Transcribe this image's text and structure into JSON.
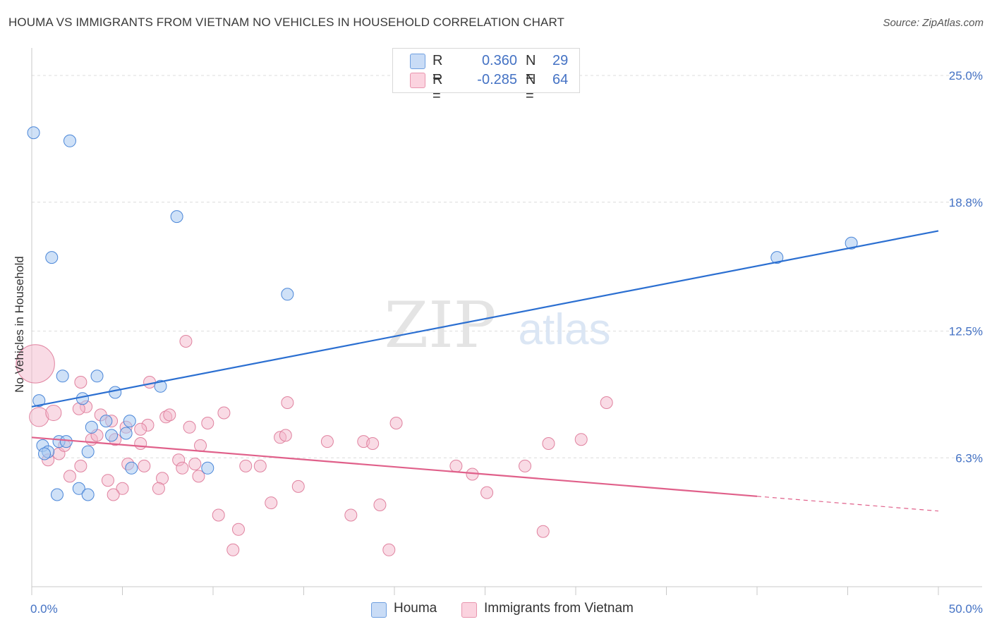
{
  "title": "HOUMA VS IMMIGRANTS FROM VIETNAM NO VEHICLES IN HOUSEHOLD CORRELATION CHART",
  "source": "Source: ZipAtlas.com",
  "watermark": {
    "zip": "ZIP",
    "atlas": "atlas"
  },
  "legend_top": {
    "rows": [
      {
        "r_label": "R =",
        "r_value": "0.360",
        "n_label": "N =",
        "n_value": "29",
        "color": "#a8c8f0"
      },
      {
        "r_label": "R =",
        "r_value": "-0.285",
        "n_label": "N =",
        "n_value": "64",
        "color": "#f4b8cb"
      }
    ]
  },
  "legend_bottom": [
    {
      "label": "Houma",
      "color": "#a8c8f0"
    },
    {
      "label": "Immigrants from Vietnam",
      "color": "#f4b8cb"
    }
  ],
  "chart_data": {
    "type": "scatter",
    "xlabel": "",
    "ylabel": "No Vehicles in Household",
    "xlim": [
      0,
      50
    ],
    "ylim": [
      0,
      26
    ],
    "x_tick_labels": [
      "0.0%",
      "50.0%"
    ],
    "y_tick_values": [
      6.3,
      12.5,
      18.8,
      25.0
    ],
    "y_tick_labels": [
      "6.3%",
      "12.5%",
      "18.8%",
      "25.0%"
    ],
    "grid": true,
    "legend_position": "top-center",
    "colors": {
      "houma_fill": "#a8c8f0",
      "houma_stroke": "#4a86d8",
      "houma_line": "#2b6fd1",
      "vietnam_fill": "#f4b8cb",
      "vietnam_stroke": "#e0829f",
      "vietnam_line": "#e0608a"
    },
    "series": [
      {
        "name": "Houma",
        "trend": {
          "x": [
            0,
            50
          ],
          "y": [
            8.8,
            17.4
          ],
          "solid_until": 50
        },
        "points": [
          [
            0.1,
            22.2
          ],
          [
            2.1,
            21.8
          ],
          [
            8.0,
            18.1
          ],
          [
            1.1,
            16.1
          ],
          [
            14.1,
            14.3
          ],
          [
            41.1,
            16.1
          ],
          [
            45.2,
            16.8
          ],
          [
            3.6,
            10.3
          ],
          [
            1.7,
            10.3
          ],
          [
            7.1,
            9.8
          ],
          [
            4.6,
            9.5
          ],
          [
            0.4,
            9.1
          ],
          [
            2.8,
            9.2
          ],
          [
            4.1,
            8.1
          ],
          [
            3.3,
            7.8
          ],
          [
            4.4,
            7.4
          ],
          [
            5.2,
            7.5
          ],
          [
            5.4,
            8.1
          ],
          [
            1.5,
            7.1
          ],
          [
            1.9,
            7.1
          ],
          [
            0.6,
            6.9
          ],
          [
            0.9,
            6.6
          ],
          [
            0.7,
            6.5
          ],
          [
            3.1,
            6.6
          ],
          [
            5.5,
            5.8
          ],
          [
            9.7,
            5.8
          ],
          [
            1.4,
            4.5
          ],
          [
            2.6,
            4.8
          ],
          [
            3.1,
            4.5
          ]
        ]
      },
      {
        "name": "Immigrants from Vietnam",
        "trend": {
          "x": [
            0,
            50
          ],
          "y": [
            7.3,
            3.7
          ],
          "solid_until": 40
        },
        "points": [
          [
            0.2,
            10.9
          ],
          [
            0.4,
            8.3
          ],
          [
            1.2,
            8.5
          ],
          [
            3.0,
            8.8
          ],
          [
            2.6,
            8.7
          ],
          [
            3.8,
            8.4
          ],
          [
            4.4,
            8.1
          ],
          [
            6.5,
            10.0
          ],
          [
            8.5,
            12.0
          ],
          [
            7.4,
            8.3
          ],
          [
            7.6,
            8.4
          ],
          [
            6.4,
            7.9
          ],
          [
            6.0,
            7.7
          ],
          [
            8.7,
            7.8
          ],
          [
            9.7,
            8.0
          ],
          [
            10.6,
            8.5
          ],
          [
            14.1,
            9.0
          ],
          [
            20.1,
            8.0
          ],
          [
            31.7,
            9.0
          ],
          [
            2.7,
            10.0
          ],
          [
            3.3,
            7.2
          ],
          [
            3.6,
            7.4
          ],
          [
            4.6,
            7.2
          ],
          [
            5.2,
            7.8
          ],
          [
            6.0,
            7.0
          ],
          [
            9.3,
            6.9
          ],
          [
            13.7,
            7.3
          ],
          [
            14.0,
            7.4
          ],
          [
            16.3,
            7.1
          ],
          [
            18.3,
            7.1
          ],
          [
            18.8,
            7.0
          ],
          [
            28.5,
            7.0
          ],
          [
            30.3,
            7.2
          ],
          [
            1.5,
            6.5
          ],
          [
            0.9,
            6.2
          ],
          [
            1.8,
            6.9
          ],
          [
            2.7,
            5.9
          ],
          [
            5.3,
            6.0
          ],
          [
            6.2,
            5.9
          ],
          [
            8.1,
            6.2
          ],
          [
            8.3,
            5.8
          ],
          [
            9.0,
            6.0
          ],
          [
            11.8,
            5.9
          ],
          [
            12.6,
            5.9
          ],
          [
            23.4,
            5.9
          ],
          [
            27.2,
            5.9
          ],
          [
            24.3,
            5.5
          ],
          [
            2.1,
            5.4
          ],
          [
            4.2,
            5.2
          ],
          [
            7.2,
            5.3
          ],
          [
            9.2,
            5.4
          ],
          [
            5.0,
            4.8
          ],
          [
            7.0,
            4.8
          ],
          [
            14.7,
            4.9
          ],
          [
            4.5,
            4.5
          ],
          [
            25.1,
            4.6
          ],
          [
            13.2,
            4.1
          ],
          [
            19.2,
            4.0
          ],
          [
            10.3,
            3.5
          ],
          [
            17.6,
            3.5
          ],
          [
            11.4,
            2.8
          ],
          [
            28.2,
            2.7
          ],
          [
            11.1,
            1.8
          ],
          [
            19.7,
            1.8
          ]
        ],
        "sizes": [
          3.2,
          1.6,
          1.3,
          1.0,
          1.0,
          1.0,
          1.0,
          1.0,
          1.0,
          1.0,
          1.0,
          1.0,
          1.0,
          1.0,
          1.0,
          1.0,
          1.0,
          1.0,
          1.0,
          1.0,
          1.0,
          1.0,
          1.0,
          1.0,
          1.0,
          1.0,
          1.0,
          1.0,
          1.0,
          1.0,
          1.0,
          1.0,
          1.0,
          1.0,
          1.0,
          1.0,
          1.0,
          1.0,
          1.0,
          1.0,
          1.0,
          1.0,
          1.0,
          1.0,
          1.0,
          1.0,
          1.0,
          1.0,
          1.0,
          1.0,
          1.0,
          1.0,
          1.0,
          1.0,
          1.0,
          1.0,
          1.0,
          1.0,
          1.0,
          1.0,
          1.0,
          1.0,
          1.0,
          1.0
        ]
      }
    ]
  }
}
